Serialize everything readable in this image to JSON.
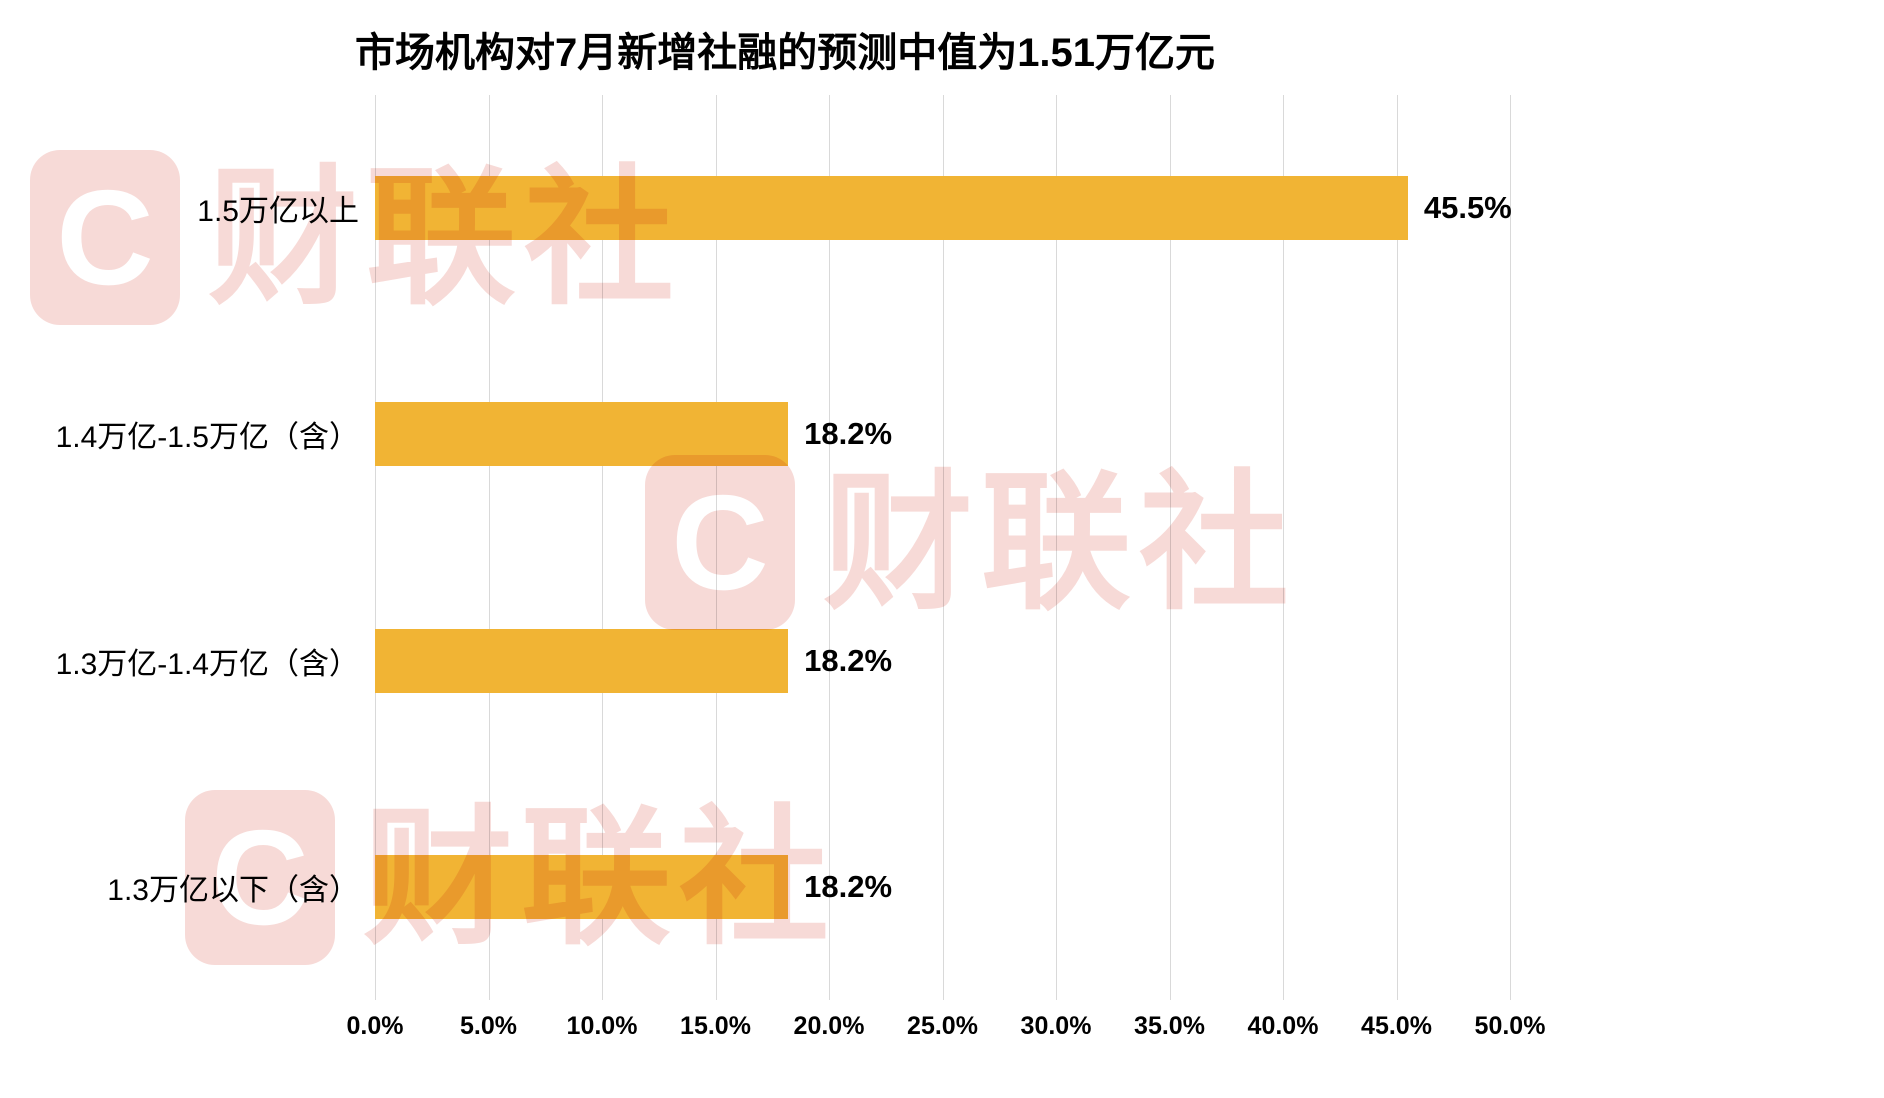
{
  "chart_data": {
    "type": "bar",
    "orientation": "horizontal",
    "title": "市场机构对7月新增社融的预测中值为1.51万亿元",
    "categories": [
      "1.5万亿以上",
      "1.4万亿-1.5万亿（含）",
      "1.3万亿-1.4万亿（含）",
      "1.3万亿以下（含）"
    ],
    "values": [
      45.5,
      18.2,
      18.2,
      18.2
    ],
    "value_labels": [
      "45.5%",
      "18.2%",
      "18.2%",
      "18.2%"
    ],
    "x_ticks": [
      "0.0%",
      "5.0%",
      "10.0%",
      "15.0%",
      "20.0%",
      "25.0%",
      "30.0%",
      "35.0%",
      "40.0%",
      "45.0%",
      "50.0%"
    ],
    "xlim": [
      0,
      50
    ],
    "xlabel": "",
    "ylabel": "",
    "grid": true,
    "legend": false,
    "bar_color": "#F1B434"
  },
  "watermark": {
    "logo_letter": "C",
    "text": "财联社",
    "color": "#EFB6B0"
  }
}
